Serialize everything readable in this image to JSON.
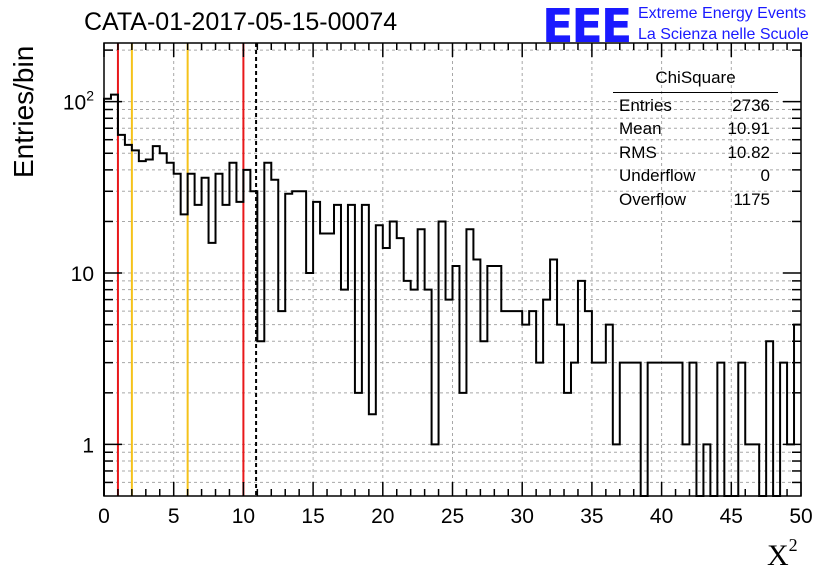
{
  "chart_data": {
    "type": "histogram",
    "title": "CATA-01-2017-05-15-00074",
    "xlabel_main": "X",
    "xlabel_sup": "2",
    "ylabel": "Entries/bin",
    "xlim": [
      0,
      50
    ],
    "ylim": [
      0.5,
      220
    ],
    "yscale": "log",
    "bin_width": 0.5,
    "grid": true,
    "x_ticks": [
      "0",
      "5",
      "10",
      "15",
      "20",
      "25",
      "30",
      "35",
      "40",
      "45",
      "50"
    ],
    "y_ticks": [
      {
        "value": 1,
        "label": "1"
      },
      {
        "value": 10,
        "label": "10"
      },
      {
        "value": 100,
        "label": "10",
        "sup": "2"
      }
    ],
    "values": [
      104,
      110,
      64,
      56,
      52,
      45,
      46,
      55,
      50,
      44,
      38,
      22,
      38,
      25,
      36,
      15,
      38,
      25,
      44,
      26,
      40,
      30,
      4,
      44,
      35,
      6,
      29,
      30,
      30,
      10,
      26,
      17,
      17,
      25,
      8,
      25,
      2,
      25,
      1.5,
      19,
      14,
      20,
      16,
      9,
      8,
      18,
      8,
      1,
      20,
      7,
      11,
      2,
      18,
      12,
      4,
      11,
      11,
      6,
      6,
      6,
      5,
      6,
      3,
      7,
      12,
      5,
      2,
      3,
      9,
      6,
      3,
      3,
      5,
      1,
      3,
      3,
      3,
      0,
      3,
      3,
      3,
      3,
      3,
      1,
      3,
      0,
      1,
      0,
      3,
      0,
      0,
      3,
      1,
      1,
      0,
      4,
      0,
      3,
      1,
      5
    ],
    "vertical_lines": [
      {
        "x": 1,
        "color": "#e8181a",
        "style": "solid"
      },
      {
        "x": 2,
        "color": "#f5c21a",
        "style": "solid"
      },
      {
        "x": 6,
        "color": "#f5c21a",
        "style": "solid"
      },
      {
        "x": 10,
        "color": "#e8181a",
        "style": "solid"
      },
      {
        "x": 10.91,
        "color": "#000000",
        "style": "dashed"
      }
    ]
  },
  "stats_box": {
    "title": "ChiSquare",
    "rows": [
      {
        "label": "Entries",
        "value": "2736"
      },
      {
        "label": "Mean",
        "value": "10.91"
      },
      {
        "label": "RMS",
        "value": "10.82"
      },
      {
        "label": "Underflow",
        "value": "0"
      },
      {
        "label": "Overflow",
        "value": "1175"
      }
    ]
  },
  "logo": {
    "mark": "EEE",
    "line1": "Extreme Energy Events",
    "line2": "La Scienza nelle Scuole",
    "color": "#1a1aff"
  }
}
